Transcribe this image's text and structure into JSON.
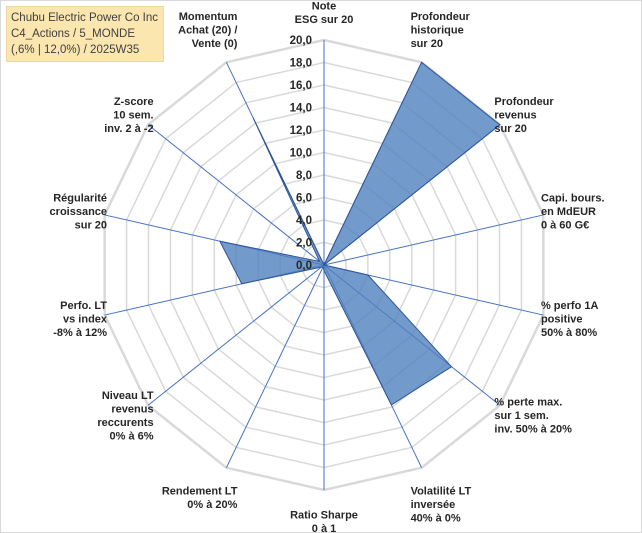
{
  "header": {
    "line1": "Chubu Electric Power Co Inc",
    "line2": "C4_Actions / 5_MONDE",
    "line3": "(,6% | 12,0%) / 2025W35"
  },
  "chart_data": {
    "type": "radar",
    "rmin": 0,
    "rmax": 20,
    "ticks": [
      "0,0",
      "2,0",
      "4,0",
      "6,0",
      "8,0",
      "10,0",
      "12,0",
      "14,0",
      "16,0",
      "18,0",
      "20,0"
    ],
    "tick_values": [
      0,
      2,
      4,
      6,
      8,
      10,
      12,
      14,
      16,
      18,
      20
    ],
    "axes": [
      [
        "Note",
        "ESG sur 20"
      ],
      [
        "Profondeur",
        "historique",
        "sur 20"
      ],
      [
        "Profondeur",
        "revenus",
        "sur 20"
      ],
      [
        "Capi. bours.",
        "en MdEUR",
        "0 à 60 G€"
      ],
      [
        "% perfo 1A",
        "positive",
        "50% à 80%"
      ],
      [
        "% perte max.",
        "sur 1 sem.",
        "inv. 50% à 20%"
      ],
      [
        "Volatilité LT",
        "inversée",
        "40% à 0%"
      ],
      [
        "Ratio Sharpe",
        "0 à 1"
      ],
      [
        "Rendement LT",
        "0% à 20%"
      ],
      [
        "Niveau LT",
        "revenus",
        "reccurents",
        "0% à 6%"
      ],
      [
        "Perfo. LT",
        "vs index",
        "-8% à 12%"
      ],
      [
        "Régularité",
        "croissance",
        "sur 20"
      ],
      [
        "Z-score",
        "10 sem.",
        "inv. 2 à -2"
      ],
      [
        "Momentum",
        "Achat (20) /",
        "Vente (0)"
      ]
    ],
    "values": [
      0,
      20,
      20,
      0,
      4,
      14.5,
      13.8,
      0.5,
      0.2,
      0.3,
      7.5,
      9.5,
      0.5,
      14.5
    ],
    "colors": {
      "fill": "#4f81bd",
      "fill_opacity": 0.8,
      "stroke": "#2f5597",
      "spoke": "#4472c4",
      "grid": "#d9d9d9"
    }
  }
}
